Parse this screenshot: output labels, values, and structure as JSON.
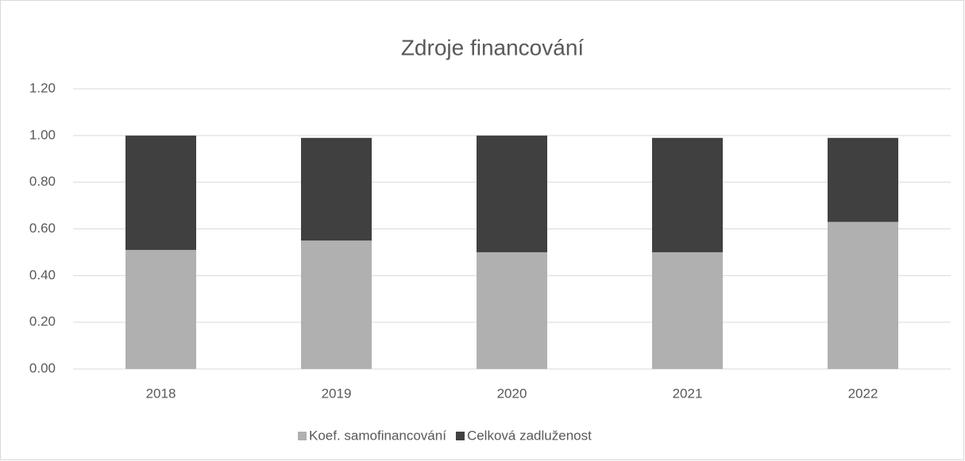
{
  "chart_data": {
    "type": "stacked_bar",
    "title": "Zdroje financování",
    "categories": [
      "2018",
      "2019",
      "2020",
      "2021",
      "2022"
    ],
    "series": [
      {
        "name": "Koef. samofinancování",
        "color": "#b0b0b0",
        "values": [
          0.51,
          0.55,
          0.5,
          0.5,
          0.63
        ]
      },
      {
        "name": "Celková zadluženost",
        "color": "#404040",
        "values": [
          0.49,
          0.44,
          0.5,
          0.49,
          0.36
        ]
      }
    ],
    "ylim": [
      0,
      1.2
    ],
    "yticks": [
      {
        "value": 0,
        "label": "0.00"
      },
      {
        "value": 0.2,
        "label": "0.20"
      },
      {
        "value": 0.4,
        "label": "0.40"
      },
      {
        "value": 0.6,
        "label": "0.60"
      },
      {
        "value": 0.8,
        "label": "0.80"
      },
      {
        "value": 1,
        "label": "1.00"
      },
      {
        "value": 1.2,
        "label": "1.20"
      }
    ],
    "grid": true,
    "legend": "bottom"
  }
}
